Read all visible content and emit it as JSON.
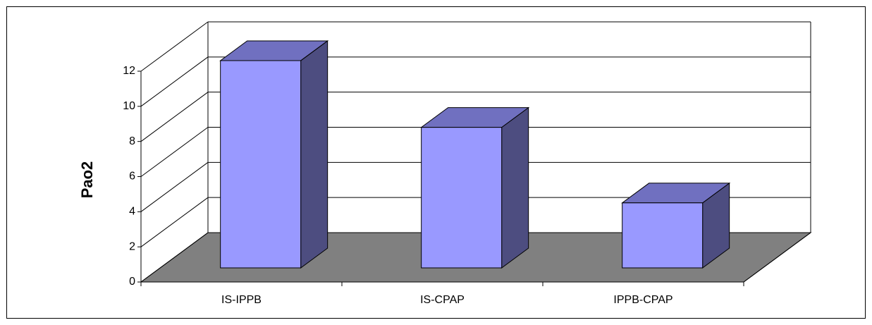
{
  "chart_data": {
    "type": "bar3d",
    "y_axis_label": "Pao2",
    "categories": [
      "IS-IPPB",
      "IS-CPAP",
      "IPPB-CPAP"
    ],
    "values": [
      11.8,
      8,
      3.7
    ],
    "color": "#9999ff",
    "top_color": "#7070c0",
    "side_color": "#4d4d80",
    "floor_color": "#808080",
    "ylim": [
      0,
      12
    ],
    "yticks": [
      0,
      2,
      4,
      6,
      8,
      10,
      12
    ],
    "grid": true
  }
}
